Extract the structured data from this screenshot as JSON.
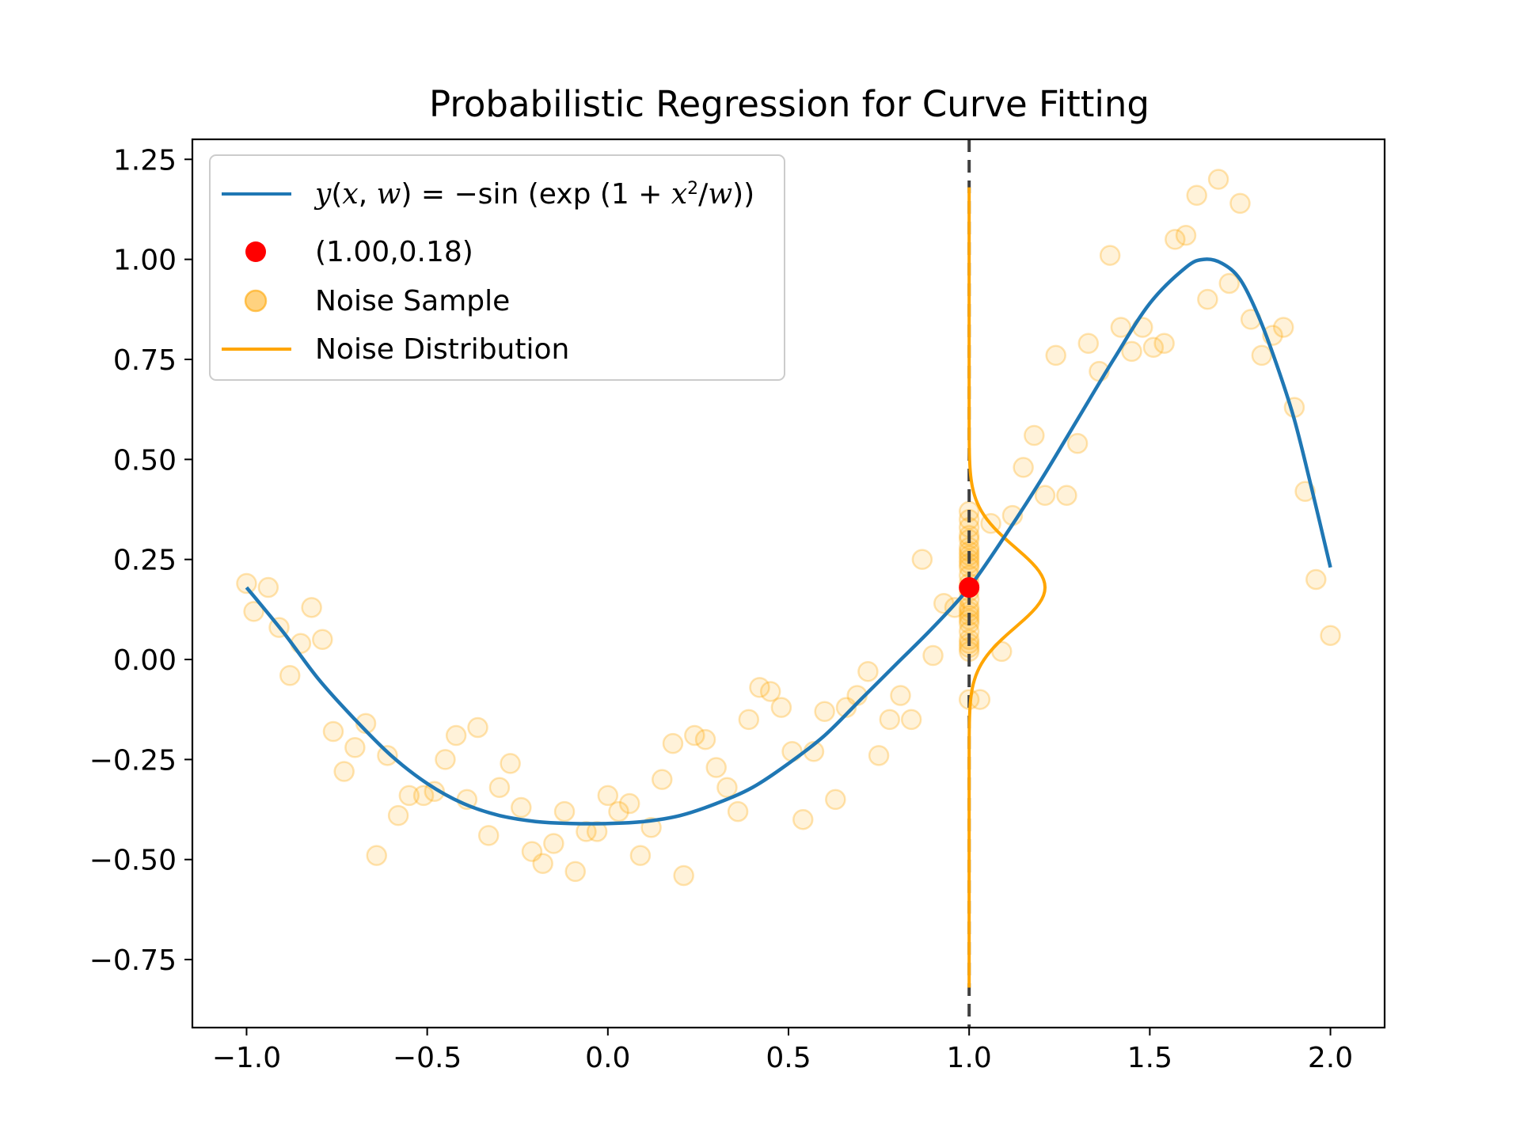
{
  "chart_data": {
    "type": "scatter",
    "title": "Probabilistic Regression for Curve Fitting",
    "xlabel": "",
    "ylabel": "",
    "xlim": [
      -1.15,
      2.15
    ],
    "ylim": [
      -0.92,
      1.3
    ],
    "xticks": [
      -1.0,
      -0.5,
      0.0,
      0.5,
      1.0,
      1.5,
      2.0
    ],
    "xtick_labels": [
      "−1.0",
      "−0.5",
      "0.0",
      "0.5",
      "1.0",
      "1.5",
      "2.0"
    ],
    "yticks": [
      -0.75,
      -0.5,
      -0.25,
      0.0,
      0.25,
      0.5,
      0.75,
      1.0,
      1.25
    ],
    "ytick_labels": [
      "−0.75",
      "−0.50",
      "−0.25",
      "0.00",
      "0.25",
      "0.50",
      "0.75",
      "1.00",
      "1.25"
    ],
    "grid": false,
    "legend_position": "top-left",
    "curve": {
      "label": "y(x, w) = −sin(exp(1 + x²/w))",
      "color": "#1f77b4",
      "x": [
        -1.0,
        -0.9,
        -0.8,
        -0.7,
        -0.6,
        -0.5,
        -0.4,
        -0.3,
        -0.2,
        -0.1,
        0.0,
        0.1,
        0.2,
        0.3,
        0.4,
        0.5,
        0.6,
        0.7,
        0.8,
        0.9,
        1.0,
        1.1,
        1.2,
        1.3,
        1.4,
        1.5,
        1.6,
        1.65,
        1.7,
        1.75,
        1.8,
        1.85,
        1.9,
        1.95,
        2.0
      ],
      "y": [
        0.18,
        0.07,
        -0.05,
        -0.15,
        -0.24,
        -0.31,
        -0.36,
        -0.39,
        -0.405,
        -0.41,
        -0.41,
        -0.405,
        -0.39,
        -0.36,
        -0.32,
        -0.26,
        -0.19,
        -0.1,
        -0.01,
        0.08,
        0.18,
        0.31,
        0.45,
        0.6,
        0.75,
        0.89,
        0.98,
        1.0,
        0.99,
        0.95,
        0.86,
        0.74,
        0.6,
        0.42,
        0.23
      ]
    },
    "point": {
      "label": "(1.00,0.18)",
      "x": 1.0,
      "y": 0.18,
      "color": "#ff0000"
    },
    "noise_samples": {
      "label": "Noise Sample",
      "color": "#ffa500",
      "points": [
        [
          -1.0,
          0.19
        ],
        [
          -0.98,
          0.12
        ],
        [
          -0.94,
          0.18
        ],
        [
          -0.91,
          0.08
        ],
        [
          -0.88,
          -0.04
        ],
        [
          -0.85,
          0.04
        ],
        [
          -0.82,
          0.13
        ],
        [
          -0.79,
          0.05
        ],
        [
          -0.76,
          -0.18
        ],
        [
          -0.73,
          -0.28
        ],
        [
          -0.7,
          -0.22
        ],
        [
          -0.67,
          -0.16
        ],
        [
          -0.64,
          -0.49
        ],
        [
          -0.61,
          -0.24
        ],
        [
          -0.58,
          -0.39
        ],
        [
          -0.55,
          -0.34
        ],
        [
          -0.51,
          -0.34
        ],
        [
          -0.48,
          -0.33
        ],
        [
          -0.45,
          -0.25
        ],
        [
          -0.42,
          -0.19
        ],
        [
          -0.39,
          -0.35
        ],
        [
          -0.36,
          -0.17
        ],
        [
          -0.33,
          -0.44
        ],
        [
          -0.3,
          -0.32
        ],
        [
          -0.27,
          -0.26
        ],
        [
          -0.24,
          -0.37
        ],
        [
          -0.21,
          -0.48
        ],
        [
          -0.18,
          -0.51
        ],
        [
          -0.15,
          -0.46
        ],
        [
          -0.12,
          -0.38
        ],
        [
          -0.09,
          -0.53
        ],
        [
          -0.06,
          -0.43
        ],
        [
          -0.03,
          -0.43
        ],
        [
          0.0,
          -0.34
        ],
        [
          0.03,
          -0.38
        ],
        [
          0.06,
          -0.36
        ],
        [
          0.09,
          -0.49
        ],
        [
          0.12,
          -0.42
        ],
        [
          0.15,
          -0.3
        ],
        [
          0.18,
          -0.21
        ],
        [
          0.21,
          -0.54
        ],
        [
          0.24,
          -0.19
        ],
        [
          0.27,
          -0.2
        ],
        [
          0.3,
          -0.27
        ],
        [
          0.33,
          -0.32
        ],
        [
          0.36,
          -0.38
        ],
        [
          0.39,
          -0.15
        ],
        [
          0.42,
          -0.07
        ],
        [
          0.45,
          -0.08
        ],
        [
          0.48,
          -0.12
        ],
        [
          0.51,
          -0.23
        ],
        [
          0.54,
          -0.4
        ],
        [
          0.57,
          -0.23
        ],
        [
          0.6,
          -0.13
        ],
        [
          0.63,
          -0.35
        ],
        [
          0.66,
          -0.12
        ],
        [
          0.69,
          -0.09
        ],
        [
          0.72,
          -0.03
        ],
        [
          0.75,
          -0.24
        ],
        [
          0.78,
          -0.15
        ],
        [
          0.81,
          -0.09
        ],
        [
          0.84,
          -0.15
        ],
        [
          0.87,
          0.25
        ],
        [
          0.9,
          0.01
        ],
        [
          0.93,
          0.14
        ],
        [
          0.96,
          0.13
        ],
        [
          1.0,
          0.04
        ],
        [
          1.03,
          -0.1
        ],
        [
          1.06,
          0.34
        ],
        [
          1.09,
          0.02
        ],
        [
          1.12,
          0.36
        ],
        [
          1.15,
          0.48
        ],
        [
          1.18,
          0.56
        ],
        [
          1.21,
          0.41
        ],
        [
          1.24,
          0.76
        ],
        [
          1.27,
          0.41
        ],
        [
          1.3,
          0.54
        ],
        [
          1.33,
          0.79
        ],
        [
          1.36,
          0.72
        ],
        [
          1.39,
          1.01
        ],
        [
          1.42,
          0.83
        ],
        [
          1.45,
          0.77
        ],
        [
          1.48,
          0.83
        ],
        [
          1.51,
          0.78
        ],
        [
          1.54,
          0.79
        ],
        [
          1.57,
          1.05
        ],
        [
          1.6,
          1.06
        ],
        [
          1.63,
          1.16
        ],
        [
          1.66,
          0.9
        ],
        [
          1.69,
          1.2
        ],
        [
          1.72,
          0.94
        ],
        [
          1.75,
          1.14
        ],
        [
          1.78,
          0.85
        ],
        [
          1.81,
          0.76
        ],
        [
          1.84,
          0.81
        ],
        [
          1.87,
          0.83
        ],
        [
          1.9,
          0.63
        ],
        [
          1.93,
          0.42
        ],
        [
          1.96,
          0.2
        ],
        [
          2.0,
          0.06
        ],
        [
          1.0,
          0.37
        ],
        [
          1.0,
          0.35
        ],
        [
          1.0,
          0.33
        ],
        [
          1.0,
          0.31
        ],
        [
          1.0,
          0.3
        ],
        [
          1.0,
          0.28
        ],
        [
          1.0,
          0.27
        ],
        [
          1.0,
          0.26
        ],
        [
          1.0,
          0.25
        ],
        [
          1.0,
          0.24
        ],
        [
          1.0,
          0.23
        ],
        [
          1.0,
          0.21
        ],
        [
          1.0,
          0.19
        ],
        [
          1.0,
          0.17
        ],
        [
          1.0,
          0.15
        ],
        [
          1.0,
          0.13
        ],
        [
          1.0,
          0.12
        ],
        [
          1.0,
          0.11
        ],
        [
          1.0,
          0.1
        ],
        [
          1.0,
          0.09
        ],
        [
          1.0,
          0.07
        ],
        [
          1.0,
          0.05
        ],
        [
          1.0,
          0.03
        ],
        [
          1.0,
          0.02
        ],
        [
          1.0,
          -0.1
        ]
      ]
    },
    "noise_distribution": {
      "label": "Noise Distribution",
      "color": "#ffa500",
      "center_x": 1.0,
      "mean": 0.18,
      "sigma": 0.1,
      "peak_height": 0.21,
      "y_range": [
        -0.82,
        1.18
      ]
    },
    "reference_line": {
      "x": 1.0,
      "style": "dashed",
      "color": "#404040"
    }
  }
}
